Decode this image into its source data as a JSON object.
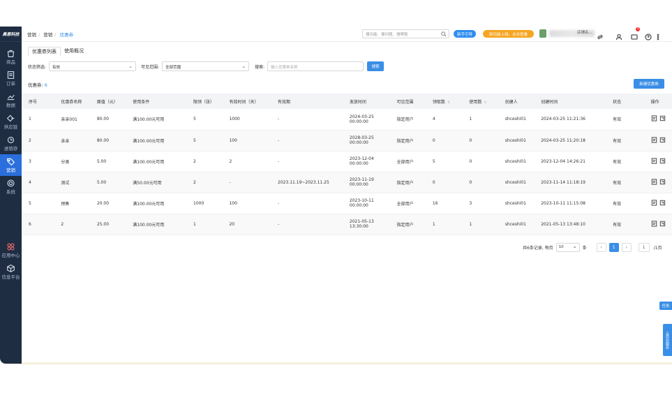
{
  "sidebar": {
    "logo": "奥恩科技",
    "items": [
      {
        "label": "商品",
        "icon": "bag-icon"
      },
      {
        "label": "订单",
        "icon": "order-icon"
      },
      {
        "label": "数据",
        "icon": "chart-icon"
      },
      {
        "label": "供应链",
        "icon": "supply-icon"
      },
      {
        "label": "进销存",
        "icon": "stock-icon"
      },
      {
        "label": "营销",
        "icon": "tag-icon",
        "active": true
      },
      {
        "label": "系统",
        "icon": "gear-icon"
      },
      {
        "label": "应用中心",
        "icon": "apps-icon"
      },
      {
        "label": "信息平台",
        "icon": "cube-icon"
      }
    ]
  },
  "topbar": {
    "breadcrumb": [
      "营销",
      "营销",
      "优惠券"
    ],
    "search_placeholder": "搜功能、搜问题、搜帮账",
    "newbie_label": "新手引导",
    "promo_label": "新功能上线，点击查看",
    "user_name": "店铺名...",
    "notif_count": "1"
  },
  "tabs": [
    "优惠券列表",
    "使用概况"
  ],
  "filters": {
    "status_label": "状态筛选:",
    "status_value": "有效",
    "visible_label": "可见范围:",
    "visible_value": "全部范围",
    "search_label": "搜索:",
    "search_placeholder": "输入优惠券名称",
    "search_button": "搜索"
  },
  "count_label": "优惠券:",
  "count_value": "6",
  "new_button": "新建优惠券",
  "table": {
    "headers": [
      "序号",
      "优惠券名称",
      "面值（元）",
      "使用条件",
      "限领（张）",
      "有效时间（天）",
      "有效期",
      "发放时间",
      "可见范围",
      "领取数",
      "使用数",
      "创建人",
      "创建时间",
      "状态",
      "操作"
    ],
    "rows": [
      [
        "1",
        "亲亲001",
        "80.00",
        "满100.00元可用",
        "5",
        "1000",
        "-",
        "2024-03-25 00:00:00",
        "指定用户",
        "4",
        "1",
        "shceshi01",
        "2024-03-25 11:21:36",
        "有效"
      ],
      [
        "2",
        "亲亲",
        "80.00",
        "满100.00元可用",
        "5",
        "100",
        "-",
        "2028-03-25 00:00:00",
        "指定用户",
        "0",
        "0",
        "shceshi01",
        "2024-03-25 11:20:18",
        "有效"
      ],
      [
        "3",
        "分类",
        "5.00",
        "满100.00元可用",
        "2",
        "2",
        "-",
        "2023-12-04 00:00:00",
        "全部用户",
        "5",
        "0",
        "shceshi01",
        "2023-12-04 14:26:21",
        "有效"
      ],
      [
        "4",
        "测试",
        "5.00",
        "满50.00元可用",
        "2",
        "-",
        "2023.11.19~2023.11.25",
        "2023-11-19 00:00:00",
        "指定用户",
        "0",
        "0",
        "shceshi01",
        "2023-11-14 11:18:19",
        "有效"
      ],
      [
        "5",
        "预售",
        "20.00",
        "满100.00元可用",
        "1000",
        "100",
        "-",
        "2023-10-11 00:00:00",
        "全部用户",
        "16",
        "3",
        "shceshi01",
        "2023-10-11 11:15:08",
        "有效"
      ],
      [
        "6",
        "2",
        "25.00",
        "满100.00元可用",
        "1",
        "20",
        "-",
        "2021-05-13 13:30:00",
        "指定用户",
        "1",
        "1",
        "shceshi01",
        "2021-05-13 13:48:10",
        "有效"
      ]
    ]
  },
  "pager": {
    "total_text": "共6条记录, 每页",
    "page_size": "10",
    "unit": "条",
    "current": "1",
    "goto_value": "1",
    "pages_text": "/1页"
  },
  "float": {
    "task": "任务",
    "service": "云商在服务"
  }
}
